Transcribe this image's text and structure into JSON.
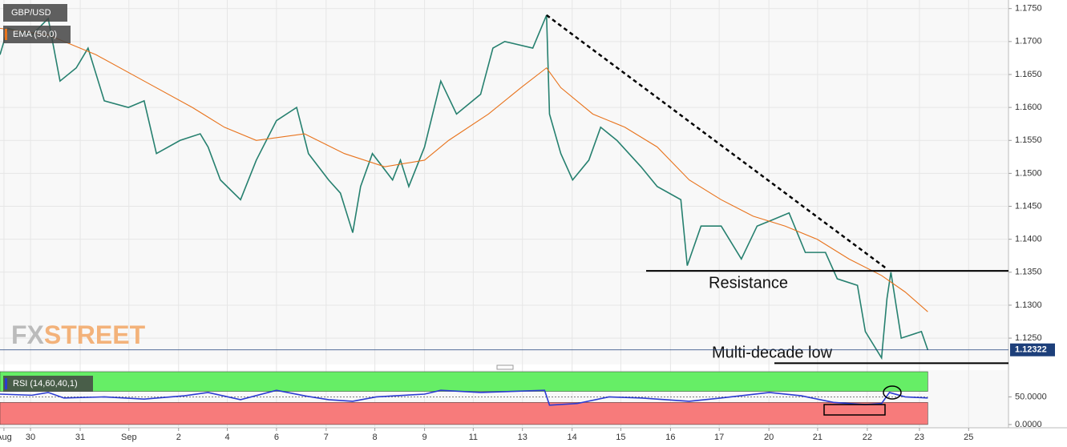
{
  "chart_data": [
    {
      "type": "line",
      "title": "GBP/USD",
      "watermark": [
        "FX",
        "STREET"
      ],
      "xlim": [
        0,
        20.5
      ],
      "xticks": [
        {
          "value": 0.08,
          "label": "Aug"
        },
        {
          "value": 0.62,
          "label": "30"
        },
        {
          "value": 1.63,
          "label": "31"
        },
        {
          "value": 2.62,
          "label": "Sep"
        },
        {
          "value": 3.63,
          "label": "2"
        },
        {
          "value": 4.62,
          "label": "4"
        },
        {
          "value": 5.62,
          "label": "6"
        },
        {
          "value": 6.63,
          "label": "7"
        },
        {
          "value": 7.62,
          "label": "8"
        },
        {
          "value": 8.63,
          "label": "9"
        },
        {
          "value": 9.62,
          "label": "11"
        },
        {
          "value": 10.62,
          "label": "13"
        },
        {
          "value": 11.63,
          "label": "14"
        },
        {
          "value": 12.62,
          "label": "15"
        },
        {
          "value": 13.63,
          "label": "16"
        },
        {
          "value": 14.62,
          "label": "17"
        },
        {
          "value": 15.63,
          "label": "20"
        },
        {
          "value": 16.62,
          "label": "21"
        },
        {
          "value": 17.63,
          "label": "22"
        },
        {
          "value": 18.69,
          "label": "23"
        },
        {
          "value": 19.69,
          "label": "25"
        }
      ],
      "ylim": [
        1.121,
        1.1763
      ],
      "yticks": [
        {
          "value": 1.125,
          "label": "1.1250"
        },
        {
          "value": 1.13,
          "label": "1.1300"
        },
        {
          "value": 1.135,
          "label": "1.1350"
        },
        {
          "value": 1.14,
          "label": "1.1400"
        },
        {
          "value": 1.145,
          "label": "1.1450"
        },
        {
          "value": 1.15,
          "label": "1.1500"
        },
        {
          "value": 1.155,
          "label": "1.1550"
        },
        {
          "value": 1.16,
          "label": "1.1600"
        },
        {
          "value": 1.165,
          "label": "1.1650"
        },
        {
          "value": 1.17,
          "label": "1.1700"
        },
        {
          "value": 1.175,
          "label": "1.1750"
        }
      ],
      "grid": true,
      "last_price": 1.12322,
      "series": [
        {
          "name": "GBP/USD",
          "color": "#26806f",
          "x": [
            0,
            0.16,
            0.65,
            0.98,
            1.22,
            1.55,
            1.79,
            2.12,
            2.61,
            2.93,
            3.18,
            3.66,
            4.07,
            4.23,
            4.48,
            4.89,
            5.21,
            5.62,
            6.03,
            6.27,
            6.68,
            6.92,
            7.17,
            7.33,
            7.57,
            7.98,
            8.14,
            8.31,
            8.63,
            8.96,
            9.28,
            9.77,
            10.02,
            10.26,
            10.83,
            11.11,
            11.17,
            11.4,
            11.64,
            11.97,
            12.21,
            12.54,
            13.03,
            13.36,
            13.84,
            13.97,
            14.25,
            14.66,
            15.07,
            15.39,
            15.72,
            16.04,
            16.37,
            16.78,
            17.02,
            17.43,
            17.59,
            17.92,
            18.03,
            18.11,
            18.32,
            18.73,
            18.86
          ],
          "values": [
            1.168,
            1.172,
            1.171,
            1.1735,
            1.164,
            1.166,
            1.169,
            1.161,
            1.16,
            1.161,
            1.153,
            1.155,
            1.156,
            1.154,
            1.149,
            1.146,
            1.152,
            1.158,
            1.16,
            1.153,
            1.149,
            1.147,
            1.141,
            1.148,
            1.153,
            1.149,
            1.152,
            1.148,
            1.154,
            1.164,
            1.159,
            1.162,
            1.169,
            1.17,
            1.169,
            1.174,
            1.159,
            1.153,
            1.149,
            1.152,
            1.157,
            1.155,
            1.151,
            1.148,
            1.146,
            1.136,
            1.142,
            1.142,
            1.137,
            1.142,
            1.143,
            1.144,
            1.138,
            1.138,
            1.134,
            1.133,
            1.126,
            1.122,
            1.131,
            1.135,
            1.125,
            1.126,
            1.1232
          ]
        },
        {
          "name": "EMA (50,0)",
          "color": "#e8731c",
          "x": [
            0,
            0.98,
            1.95,
            2.93,
            3.91,
            4.56,
            5.21,
            6.19,
            7.0,
            7.82,
            8.63,
            9.12,
            9.93,
            10.59,
            11.11,
            11.4,
            12.05,
            12.7,
            13.36,
            14.01,
            14.66,
            15.31,
            15.96,
            16.61,
            17.26,
            17.92,
            18.4,
            18.86
          ],
          "values": [
            1.172,
            1.171,
            1.168,
            1.164,
            1.16,
            1.157,
            1.155,
            1.156,
            1.153,
            1.151,
            1.152,
            1.155,
            1.159,
            1.163,
            1.166,
            1.163,
            1.159,
            1.157,
            1.154,
            1.149,
            1.146,
            1.1435,
            1.142,
            1.14,
            1.137,
            1.1345,
            1.132,
            1.129
          ]
        }
      ],
      "trendline": {
        "x": [
          11.11,
          18.03
        ],
        "y": [
          1.174,
          1.1355
        ]
      },
      "levels": [
        {
          "label": "Resistance",
          "value": 1.1352
        },
        {
          "label": "Multi-decade low",
          "value": 1.1212
        }
      ]
    },
    {
      "type": "line",
      "title": "RSI (14,60,40,1)",
      "xlim": [
        0,
        20.5
      ],
      "ylim": [
        -3,
        98.5
      ],
      "yticks": [
        {
          "value": 0,
          "label": "0.0000"
        },
        {
          "value": 50,
          "label": "50.0000"
        }
      ],
      "upper": 60,
      "lower": 40,
      "upper_color": "#66ee66",
      "lower_color": "#f77b7b",
      "series": [
        {
          "color": "#2b3bd1",
          "x": [
            0,
            0.65,
            0.98,
            1.3,
            2.12,
            2.93,
            3.75,
            4.23,
            4.89,
            5.62,
            6.19,
            6.68,
            7.17,
            7.65,
            8.63,
            8.96,
            9.77,
            10.42,
            11.07,
            11.17,
            11.73,
            12.38,
            13.03,
            14.01,
            14.66,
            15.64,
            16.29,
            16.94,
            17.59,
            17.92,
            18.08,
            18.4,
            18.86
          ],
          "values": [
            55,
            53,
            58,
            48,
            50,
            46,
            52,
            58,
            45,
            62,
            52,
            45,
            42,
            50,
            55,
            62,
            58,
            60,
            62,
            35,
            38,
            50,
            48,
            42,
            48,
            58,
            52,
            40,
            36,
            38,
            58,
            50,
            48
          ]
        }
      ]
    }
  ]
}
